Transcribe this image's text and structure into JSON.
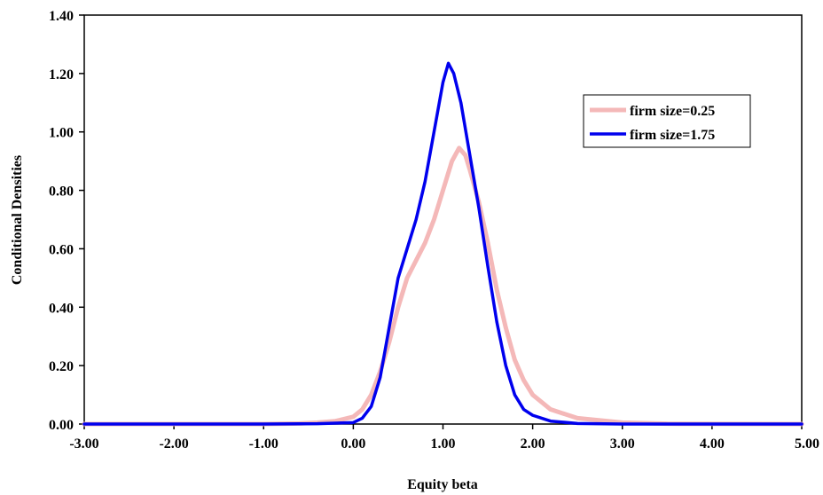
{
  "chart_data": {
    "type": "line",
    "title": "",
    "xlabel": "Equity beta",
    "ylabel": "Conditional Densities",
    "xlim": [
      -3.0,
      5.0
    ],
    "ylim": [
      0.0,
      1.4
    ],
    "x_ticks": [
      "-3.00",
      "-2.00",
      "-1.00",
      "0.00",
      "1.00",
      "2.00",
      "3.00",
      "4.00",
      "5.00"
    ],
    "y_ticks": [
      "0.00",
      "0.20",
      "0.40",
      "0.60",
      "0.80",
      "1.00",
      "1.20",
      "1.40"
    ],
    "grid": false,
    "legend_position": "top-right",
    "series": [
      {
        "name": "firm size=0.25",
        "color": "#f4b8b8",
        "points": [
          [
            -3.0,
            0.0
          ],
          [
            -1.0,
            0.0
          ],
          [
            -0.6,
            0.002
          ],
          [
            -0.4,
            0.005
          ],
          [
            -0.2,
            0.01
          ],
          [
            0.0,
            0.025
          ],
          [
            0.1,
            0.05
          ],
          [
            0.2,
            0.1
          ],
          [
            0.3,
            0.18
          ],
          [
            0.4,
            0.28
          ],
          [
            0.5,
            0.4
          ],
          [
            0.6,
            0.5
          ],
          [
            0.7,
            0.56
          ],
          [
            0.8,
            0.62
          ],
          [
            0.9,
            0.7
          ],
          [
            1.0,
            0.8
          ],
          [
            1.1,
            0.9
          ],
          [
            1.18,
            0.945
          ],
          [
            1.25,
            0.92
          ],
          [
            1.3,
            0.87
          ],
          [
            1.4,
            0.76
          ],
          [
            1.5,
            0.62
          ],
          [
            1.6,
            0.46
          ],
          [
            1.7,
            0.33
          ],
          [
            1.8,
            0.22
          ],
          [
            1.9,
            0.15
          ],
          [
            2.0,
            0.1
          ],
          [
            2.2,
            0.05
          ],
          [
            2.5,
            0.02
          ],
          [
            3.0,
            0.005
          ],
          [
            3.5,
            0.001
          ],
          [
            5.0,
            0.0
          ]
        ]
      },
      {
        "name": "firm size=1.75",
        "color": "#0000ee",
        "points": [
          [
            -3.0,
            0.0
          ],
          [
            -1.0,
            0.0
          ],
          [
            -0.4,
            0.001
          ],
          [
            0.0,
            0.005
          ],
          [
            0.1,
            0.02
          ],
          [
            0.2,
            0.06
          ],
          [
            0.3,
            0.16
          ],
          [
            0.4,
            0.33
          ],
          [
            0.5,
            0.5
          ],
          [
            0.6,
            0.6
          ],
          [
            0.7,
            0.7
          ],
          [
            0.8,
            0.83
          ],
          [
            0.9,
            1.0
          ],
          [
            1.0,
            1.17
          ],
          [
            1.06,
            1.235
          ],
          [
            1.12,
            1.2
          ],
          [
            1.2,
            1.1
          ],
          [
            1.3,
            0.92
          ],
          [
            1.4,
            0.74
          ],
          [
            1.5,
            0.54
          ],
          [
            1.6,
            0.35
          ],
          [
            1.7,
            0.2
          ],
          [
            1.8,
            0.1
          ],
          [
            1.9,
            0.05
          ],
          [
            2.0,
            0.03
          ],
          [
            2.2,
            0.01
          ],
          [
            2.5,
            0.002
          ],
          [
            3.0,
            0.0
          ],
          [
            5.0,
            0.0
          ]
        ]
      }
    ]
  }
}
